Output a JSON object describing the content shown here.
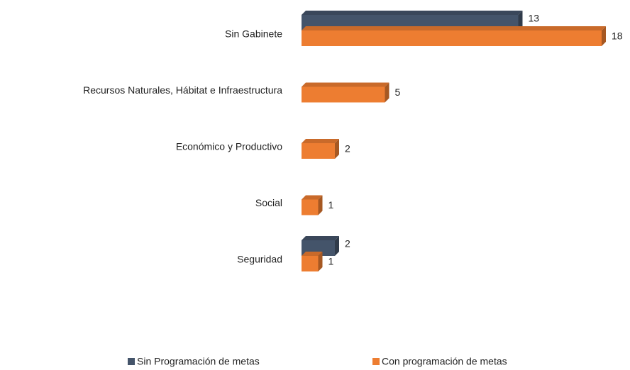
{
  "chart_data": {
    "type": "bar",
    "orientation": "horizontal",
    "categories": [
      "Sin Gabinete",
      "Recursos Naturales, Hábitat e Infraestructura",
      "Económico y Productivo",
      "Social",
      "Seguridad"
    ],
    "series": [
      {
        "name": "Sin Programación de metas",
        "color": "#44546a",
        "values": [
          13,
          null,
          null,
          null,
          2
        ]
      },
      {
        "name": "Con programación de metas",
        "color": "#ed7d31",
        "values": [
          18,
          5,
          2,
          1,
          1
        ]
      }
    ],
    "legend": "bottom"
  }
}
